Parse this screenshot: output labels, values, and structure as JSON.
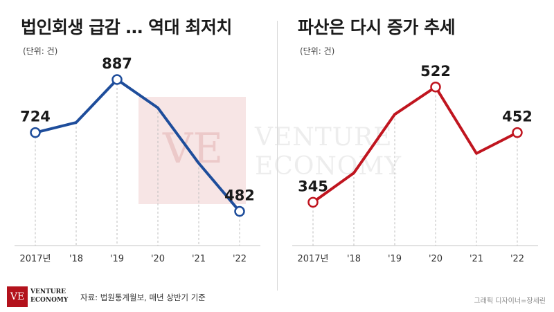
{
  "chart_data": [
    {
      "type": "line",
      "title": "법인회생 급감 … 역대 최저치",
      "subtitle": "(단위: 건)",
      "categories": [
        "2017년",
        "'18",
        "'19",
        "'20",
        "'21",
        "'22"
      ],
      "values": [
        724,
        755,
        887,
        800,
        630,
        482
      ],
      "value_labels": [
        "724",
        "",
        "887",
        "",
        "",
        "482"
      ],
      "ylim": [
        430,
        940
      ],
      "grid": false,
      "color": "#1e4d9b"
    },
    {
      "type": "line",
      "title": "파산은 다시 증가 추세",
      "subtitle": "(단위: 건)",
      "categories": [
        "2017년",
        "'18",
        "'19",
        "'20",
        "'21",
        "'22"
      ],
      "values": [
        345,
        390,
        480,
        522,
        420,
        452
      ],
      "value_labels": [
        "345",
        "",
        "",
        "522",
        "",
        "452"
      ],
      "ylim": [
        305,
        560
      ],
      "grid": false,
      "color": "#c0151f"
    }
  ],
  "watermark": {
    "letters": "VE",
    "line1": "VENTURE",
    "line2": "ECONOMY"
  },
  "footer": {
    "logo_letters": "VE",
    "logo_line1": "VENTURE",
    "logo_line2": "ECONOMY",
    "source": "자료: 법원통계월보, 매년 상반기 기준",
    "credit": "그래픽 디자이너=장세린"
  },
  "colors": {
    "axis": "#c4c4c4",
    "tick_text": "#333333",
    "label_text": "#1a1a1a"
  }
}
